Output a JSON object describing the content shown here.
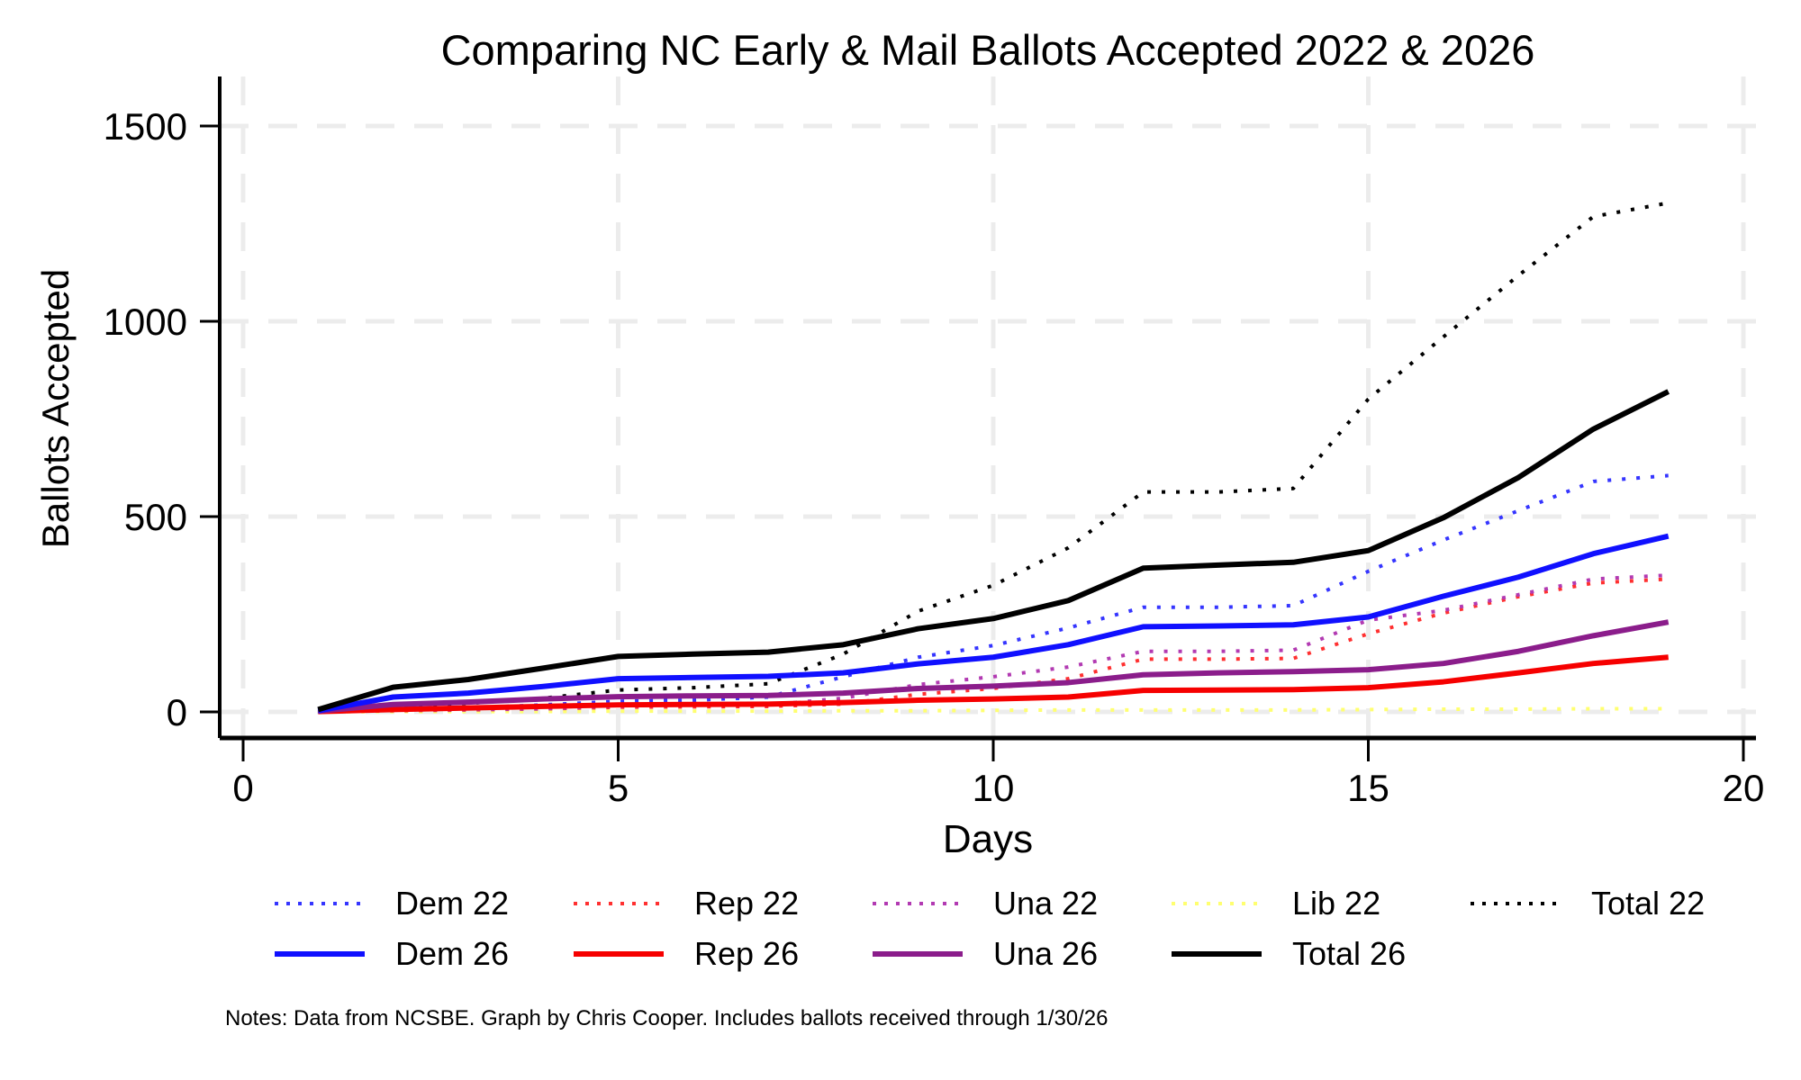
{
  "title": "Comparing NC Early & Mail Ballots Accepted 2022 & 2026",
  "notes": "Notes: Data from NCSBE. Graph by Chris Cooper. Includes ballots received through 1/30/26",
  "colors": {
    "background": "#ffffff",
    "grid": "#ececec",
    "axis": "#000000",
    "dem": "#1010ff",
    "rep": "#f60000",
    "una": "#8b1d8b",
    "lib": "#ffff70",
    "total": "#000000"
  },
  "chart_data": {
    "type": "line",
    "title": "Comparing NC Early & Mail Ballots Accepted 2022 & 2026",
    "xlabel": "Days",
    "ylabel": "Ballots Accepted",
    "x": [
      1,
      2,
      3,
      4,
      5,
      6,
      7,
      8,
      9,
      10,
      11,
      12,
      13,
      14,
      15,
      16,
      17,
      18,
      19
    ],
    "xlim": [
      0,
      20
    ],
    "ylim": [
      0,
      1500
    ],
    "x_ticks": [
      0,
      5,
      10,
      15,
      20
    ],
    "y_ticks": [
      0,
      500,
      1000,
      1500
    ],
    "grid": true,
    "legend_position": "bottom",
    "series": [
      {
        "name": "Dem 22",
        "color": "#3535ff",
        "line_style": "dotted",
        "values": [
          1,
          6,
          10,
          18,
          27,
          30,
          38,
          90,
          140,
          170,
          215,
          268,
          268,
          272,
          360,
          440,
          515,
          590,
          605
        ]
      },
      {
        "name": "Rep 22",
        "color": "#ff3030",
        "line_style": "dotted",
        "values": [
          1,
          3,
          5,
          8,
          12,
          13,
          14,
          20,
          45,
          60,
          85,
          135,
          135,
          137,
          200,
          253,
          295,
          330,
          340
        ]
      },
      {
        "name": "Una 22",
        "color": "#b23ab2",
        "line_style": "dotted",
        "values": [
          1,
          4,
          6,
          8,
          15,
          17,
          18,
          35,
          70,
          90,
          115,
          155,
          155,
          158,
          235,
          260,
          300,
          340,
          350
        ]
      },
      {
        "name": "Lib 22",
        "color": "#ffff70",
        "line_style": "dotted",
        "values": [
          0,
          1,
          1,
          1,
          2,
          2,
          2,
          3,
          3,
          4,
          5,
          5,
          5,
          5,
          6,
          7,
          7,
          8,
          8
        ]
      },
      {
        "name": "Total 22",
        "color": "#000000",
        "line_style": "dotted",
        "values": [
          3,
          14,
          22,
          35,
          56,
          62,
          72,
          148,
          258,
          324,
          420,
          563,
          563,
          572,
          801,
          960,
          1117,
          1268,
          1303
        ]
      },
      {
        "name": "Dem 26",
        "color": "#1010ff",
        "line_style": "solid",
        "values": [
          3,
          38,
          48,
          65,
          85,
          88,
          91,
          100,
          123,
          140,
          172,
          218,
          220,
          223,
          243,
          296,
          345,
          405,
          450
        ]
      },
      {
        "name": "Rep 26",
        "color": "#f60000",
        "line_style": "solid",
        "values": [
          1,
          6,
          10,
          14,
          18,
          19,
          20,
          24,
          30,
          33,
          38,
          55,
          56,
          57,
          62,
          77,
          100,
          124,
          140
        ]
      },
      {
        "name": "Una 26",
        "color": "#8b1d8b",
        "line_style": "solid",
        "values": [
          2,
          19,
          25,
          33,
          39,
          41,
          42,
          48,
          60,
          66,
          75,
          95,
          100,
          103,
          108,
          124,
          155,
          195,
          230
        ]
      },
      {
        "name": "Total 26",
        "color": "#000000",
        "line_style": "solid",
        "values": [
          6,
          63,
          83,
          112,
          142,
          148,
          153,
          172,
          213,
          239,
          285,
          368,
          376,
          383,
          413,
          497,
          600,
          724,
          820
        ]
      }
    ],
    "legend_rows": [
      [
        0,
        1,
        2,
        3,
        4
      ],
      [
        5,
        6,
        7,
        8
      ]
    ]
  }
}
